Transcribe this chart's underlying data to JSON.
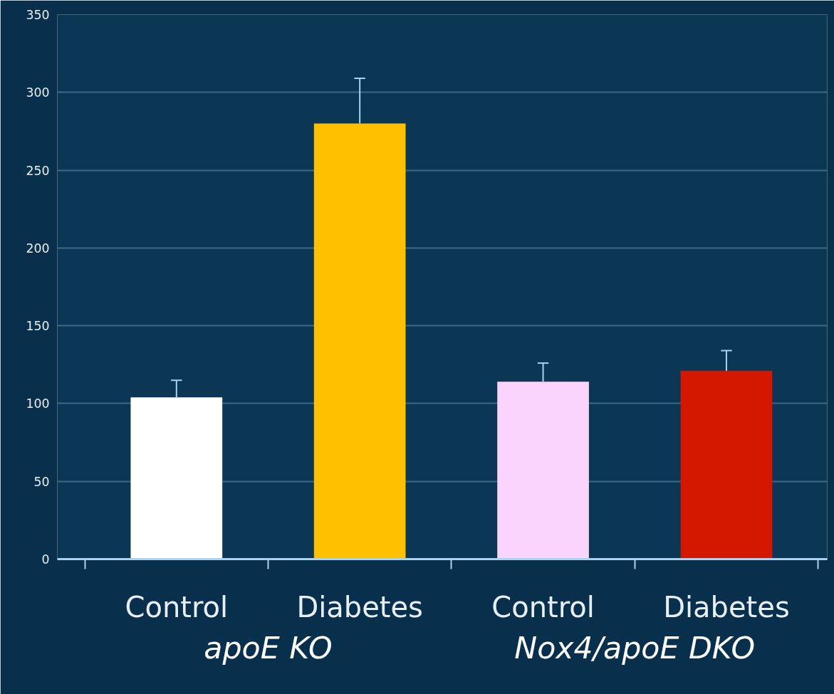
{
  "chart_data": {
    "type": "bar",
    "categories": [
      "Control",
      "Diabetes",
      "Control",
      "Diabetes"
    ],
    "values": [
      104,
      280,
      114,
      121
    ],
    "colors": [
      "#ffffff",
      "#ffc000",
      "#fad4fa",
      "#d41800"
    ],
    "errors": [
      [
        104,
        115
      ],
      [
        280,
        309
      ],
      [
        114,
        126
      ],
      [
        121,
        134
      ]
    ],
    "annotations": [
      "apoE KO",
      "Nox4/apoE DKO"
    ],
    "ylim": [
      0,
      350
    ],
    "yticks": [
      0,
      50,
      100,
      150,
      200,
      250,
      300,
      350
    ],
    "grid": "y"
  }
}
